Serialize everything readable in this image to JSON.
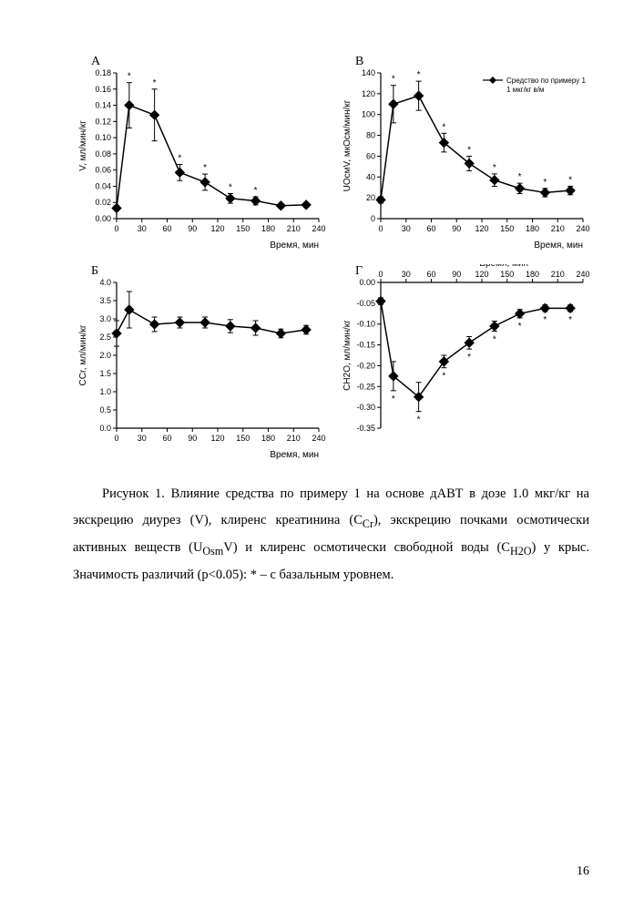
{
  "page_number": "16",
  "caption_html": "Рисунок 1. Влияние средства по примеру 1 на основе дАВТ в дозе 1.0 мкг/кг на экскрецию диурез (V), клиренс креатинина (С<sub>Cr</sub>), экскрецию почками осмотически активных веществ (U<sub>Osm</sub>V) и клиренс осмотически свободной воды (С<sub>H2O</sub>) у крыс. Значимость различий (p&lt;0.05): * – с базальным уровнем.",
  "legend_label": "Средство по примеру 1\n1 мкг/кг в/м",
  "x_axis_label": "Время, мин",
  "colors": {
    "axis": "#000000",
    "series": "#000000",
    "error": "#000000",
    "star": "#000000",
    "background": "#ffffff"
  },
  "font_sizes": {
    "axis_label": 10,
    "tick": 9,
    "panel_letter": 13,
    "legend": 8,
    "star": 10
  },
  "panels": {
    "A": {
      "letter": "А",
      "type": "line_scatter",
      "y_label": "V, мл/мин/кг",
      "xlim": [
        0,
        240
      ],
      "ylim": [
        0.0,
        0.18
      ],
      "xticks": [
        0,
        30,
        60,
        90,
        120,
        150,
        180,
        210,
        240
      ],
      "yticks": [
        0.0,
        0.02,
        0.04,
        0.06,
        0.08,
        0.1,
        0.12,
        0.14,
        0.16,
        0.18
      ],
      "ytick_decimals": 2,
      "x": [
        0,
        15,
        45,
        75,
        105,
        135,
        165,
        195,
        225
      ],
      "y": [
        0.013,
        0.14,
        0.128,
        0.057,
        0.045,
        0.025,
        0.022,
        0.016,
        0.017
      ],
      "err": [
        0.003,
        0.028,
        0.032,
        0.01,
        0.01,
        0.006,
        0.005,
        0.003,
        0.003
      ],
      "sig": [
        false,
        true,
        true,
        true,
        true,
        true,
        true,
        false,
        false
      ]
    },
    "B": {
      "letter": "В",
      "type": "line_scatter",
      "y_label": "UОсмV, мкОсм/мин/кг",
      "xlim": [
        0,
        240
      ],
      "ylim": [
        0,
        140
      ],
      "xticks": [
        0,
        30,
        60,
        90,
        120,
        150,
        180,
        210,
        240
      ],
      "yticks": [
        0,
        20,
        40,
        60,
        80,
        100,
        120,
        140
      ],
      "ytick_decimals": 0,
      "x": [
        0,
        15,
        45,
        75,
        105,
        135,
        165,
        195,
        225
      ],
      "y": [
        18,
        110,
        118,
        73,
        53,
        37,
        29,
        25,
        27
      ],
      "err": [
        3,
        18,
        14,
        9,
        7,
        6,
        5,
        4,
        4
      ],
      "sig": [
        false,
        true,
        true,
        true,
        true,
        true,
        true,
        true,
        true
      ],
      "show_legend": true
    },
    "C": {
      "letter": "Б",
      "type": "line_scatter",
      "y_label": "СCr, мл/мин/кг",
      "xlim": [
        0,
        240
      ],
      "ylim": [
        0.0,
        4.0
      ],
      "xticks": [
        0,
        30,
        60,
        90,
        120,
        150,
        180,
        210,
        240
      ],
      "yticks": [
        0.0,
        0.5,
        1.0,
        1.5,
        2.0,
        2.5,
        3.0,
        3.5,
        4.0
      ],
      "ytick_decimals": 1,
      "x": [
        0,
        15,
        45,
        75,
        105,
        135,
        165,
        195,
        225
      ],
      "y": [
        2.6,
        3.25,
        2.85,
        2.9,
        2.9,
        2.8,
        2.75,
        2.6,
        2.7
      ],
      "err": [
        0.35,
        0.5,
        0.2,
        0.15,
        0.15,
        0.18,
        0.2,
        0.12,
        0.12
      ],
      "sig": [
        false,
        false,
        false,
        false,
        false,
        false,
        false,
        false,
        false
      ]
    },
    "D": {
      "letter": "Г",
      "type": "line_scatter",
      "y_label": "СH2O, мл/мин/кг",
      "xlim": [
        0,
        240
      ],
      "ylim": [
        -0.35,
        0.0
      ],
      "xticks": [
        0,
        30,
        60,
        90,
        120,
        150,
        180,
        210,
        240
      ],
      "yticks": [
        -0.35,
        -0.3,
        -0.25,
        -0.2,
        -0.15,
        -0.1,
        -0.05,
        0.0
      ],
      "ytick_decimals": 2,
      "x_axis_on_top": true,
      "x": [
        0,
        15,
        45,
        75,
        105,
        135,
        165,
        195,
        225
      ],
      "y": [
        -0.045,
        -0.225,
        -0.275,
        -0.19,
        -0.145,
        -0.105,
        -0.075,
        -0.062,
        -0.062
      ],
      "err": [
        0.008,
        0.035,
        0.035,
        0.015,
        0.015,
        0.012,
        0.01,
        0.008,
        0.008
      ],
      "sig": [
        false,
        true,
        true,
        true,
        true,
        true,
        true,
        true,
        true
      ],
      "sig_below": true
    }
  },
  "plot_style": {
    "marker": "diamond",
    "marker_size": 5,
    "line_width": 1.5,
    "error_cap": 3
  }
}
